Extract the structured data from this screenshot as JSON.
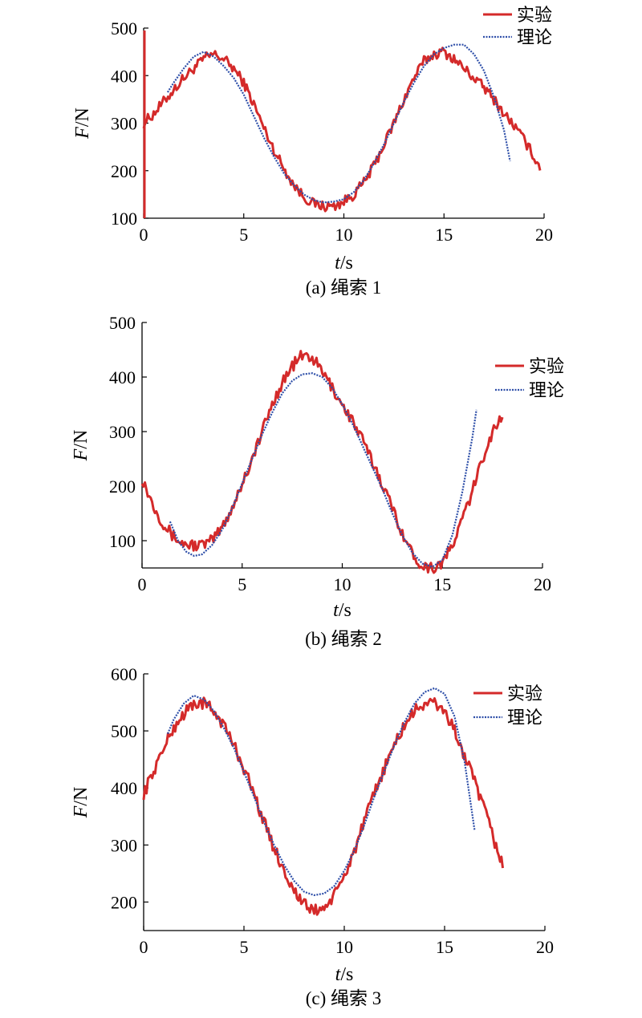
{
  "chart_data": [
    {
      "type": "line",
      "caption": "(a) 绳索 1",
      "xlabel_var": "t",
      "xlabel_unit": "/s",
      "ylabel_var": "F",
      "ylabel_unit": "/N",
      "xlim": [
        0,
        20
      ],
      "ylim": [
        100,
        500
      ],
      "xticks": [
        0,
        5,
        10,
        15,
        20
      ],
      "yticks": [
        100,
        200,
        300,
        400,
        500
      ],
      "grid": false,
      "legend_placement": "top-right",
      "series": [
        {
          "name": "实验",
          "color": "#d42a2a",
          "style": "solid",
          "x": [
            0,
            0.5,
            1,
            1.5,
            2,
            2.5,
            3,
            3.5,
            4,
            4.5,
            5,
            5.5,
            6,
            6.5,
            7,
            7.5,
            8,
            8.5,
            9,
            9.5,
            10,
            10.5,
            11,
            11.5,
            12,
            12.5,
            13,
            13.5,
            14,
            14.5,
            15,
            15.5,
            16,
            16.5,
            17,
            17.5,
            18,
            18.5,
            19,
            19.5,
            19.8
          ],
          "y": [
            300,
            320,
            345,
            370,
            395,
            415,
            435,
            445,
            435,
            415,
            385,
            340,
            290,
            245,
            205,
            170,
            145,
            130,
            125,
            125,
            135,
            150,
            175,
            210,
            255,
            300,
            350,
            395,
            430,
            445,
            450,
            435,
            415,
            395,
            375,
            350,
            320,
            295,
            265,
            230,
            205
          ]
        },
        {
          "name": "理论",
          "color": "#2d4ea8",
          "style": "dotted",
          "x": [
            1.2,
            1.5,
            2,
            2.5,
            3,
            3.5,
            4,
            4.5,
            5,
            5.5,
            6,
            6.5,
            7,
            7.5,
            8,
            8.5,
            9,
            9.5,
            10,
            10.5,
            11,
            11.5,
            12,
            12.5,
            13,
            13.5,
            14,
            14.5,
            15,
            15.5,
            16,
            16.5,
            17,
            17.5,
            18,
            18.3
          ],
          "y": [
            365,
            385,
            415,
            440,
            450,
            440,
            420,
            395,
            360,
            315,
            270,
            230,
            195,
            170,
            150,
            138,
            133,
            135,
            140,
            155,
            180,
            215,
            255,
            300,
            345,
            385,
            420,
            445,
            458,
            465,
            465,
            445,
            410,
            355,
            285,
            220
          ]
        }
      ]
    },
    {
      "type": "line",
      "caption": "(b) 绳索 2",
      "xlabel_var": "t",
      "xlabel_unit": "/s",
      "ylabel_var": "F",
      "ylabel_unit": "/N",
      "xlim": [
        0,
        20
      ],
      "ylim": [
        50,
        500
      ],
      "xticks": [
        0,
        5,
        10,
        15,
        20
      ],
      "yticks": [
        100,
        200,
        300,
        400,
        500
      ],
      "grid": false,
      "legend_placement": "top-right",
      "series": [
        {
          "name": "实验",
          "color": "#d42a2a",
          "style": "solid",
          "x": [
            0,
            0.5,
            1,
            1.5,
            2,
            2.5,
            3,
            3.5,
            4,
            4.5,
            5,
            5.5,
            6,
            6.5,
            7,
            7.5,
            8,
            8.5,
            9,
            9.5,
            10,
            10.5,
            11,
            11.5,
            12,
            12.5,
            13,
            13.5,
            14,
            14.5,
            15,
            15.5,
            16,
            16.5,
            17,
            17.5,
            18
          ],
          "y": [
            215,
            170,
            135,
            110,
            95,
            92,
            92,
            100,
            125,
            160,
            205,
            250,
            300,
            350,
            390,
            420,
            440,
            435,
            410,
            380,
            350,
            320,
            285,
            245,
            205,
            160,
            115,
            75,
            55,
            50,
            60,
            90,
            140,
            190,
            250,
            300,
            330
          ]
        },
        {
          "name": "理论",
          "color": "#2d4ea8",
          "style": "dotted",
          "x": [
            1.4,
            1.8,
            2.2,
            2.6,
            3,
            3.5,
            4,
            4.5,
            5,
            5.5,
            6,
            6.5,
            7,
            7.5,
            8,
            8.5,
            9,
            9.5,
            10,
            10.5,
            11,
            11.5,
            12,
            12.5,
            13,
            13.5,
            14,
            14.5,
            15,
            15.5,
            16,
            16.5,
            16.7
          ],
          "y": [
            135,
            100,
            80,
            72,
            75,
            92,
            120,
            160,
            205,
            250,
            295,
            335,
            370,
            393,
            405,
            407,
            400,
            380,
            350,
            315,
            275,
            235,
            195,
            150,
            110,
            78,
            58,
            52,
            65,
            110,
            190,
            290,
            340
          ]
        }
      ]
    },
    {
      "type": "line",
      "caption": "(c) 绳索 3",
      "xlabel_var": "t",
      "xlabel_unit": "/s",
      "ylabel_var": "F",
      "ylabel_unit": "/N",
      "xlim": [
        0,
        20
      ],
      "ylim": [
        150,
        600
      ],
      "xticks": [
        0,
        5,
        10,
        15,
        20
      ],
      "yticks": [
        200,
        300,
        400,
        500,
        600
      ],
      "grid": false,
      "legend_placement": "top-right",
      "series": [
        {
          "name": "实验",
          "color": "#d42a2a",
          "style": "solid",
          "x": [
            0,
            0.5,
            1,
            1.5,
            2,
            2.5,
            3,
            3.5,
            4,
            4.5,
            5,
            5.5,
            6,
            6.5,
            7,
            7.5,
            8,
            8.5,
            9,
            9.5,
            10,
            10.5,
            11,
            11.5,
            12,
            12.5,
            13,
            13.5,
            14,
            14.5,
            15,
            15.5,
            16,
            16.5,
            17,
            17.5,
            17.9
          ],
          "y": [
            390,
            430,
            470,
            505,
            530,
            548,
            548,
            535,
            510,
            475,
            435,
            390,
            340,
            295,
            255,
            220,
            195,
            185,
            190,
            210,
            245,
            290,
            340,
            390,
            435,
            475,
            510,
            535,
            548,
            548,
            535,
            500,
            455,
            410,
            360,
            305,
            265
          ]
        },
        {
          "name": "理论",
          "color": "#2d4ea8",
          "style": "dotted",
          "x": [
            1.2,
            1.5,
            2,
            2.5,
            3,
            3.5,
            4,
            4.5,
            5,
            5.5,
            6,
            6.5,
            7,
            7.5,
            8,
            8.5,
            9,
            9.5,
            10,
            10.5,
            11,
            11.5,
            12,
            12.5,
            13,
            13.5,
            14,
            14.5,
            15,
            15.5,
            16,
            16.5
          ],
          "y": [
            495,
            520,
            548,
            562,
            555,
            535,
            505,
            470,
            428,
            385,
            340,
            300,
            265,
            237,
            218,
            212,
            215,
            228,
            255,
            290,
            335,
            385,
            430,
            475,
            515,
            548,
            568,
            575,
            565,
            525,
            445,
            325
          ]
        }
      ]
    }
  ]
}
